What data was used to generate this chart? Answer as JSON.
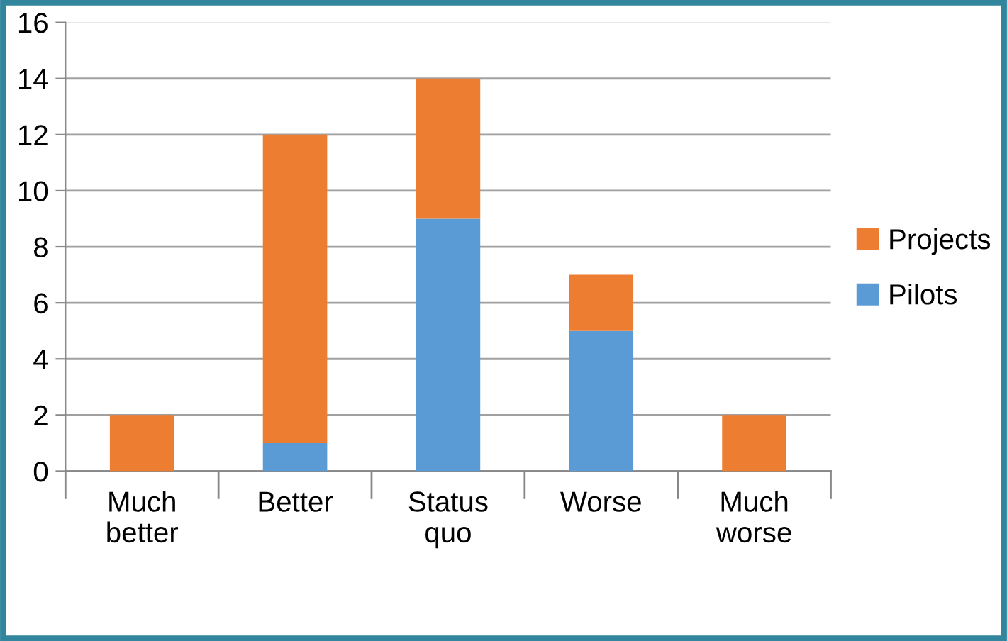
{
  "chart_data": {
    "type": "bar",
    "stacked": true,
    "categories": [
      "Much\nbetter",
      "Better",
      "Status\nquo",
      "Worse",
      "Much\nworse"
    ],
    "series": [
      {
        "name": "Pilots",
        "color": "#5b9bd5",
        "values": [
          0,
          1,
          9,
          5,
          0
        ]
      },
      {
        "name": "Projects",
        "color": "#ed7d31",
        "values": [
          2,
          11,
          5,
          2,
          2
        ]
      }
    ],
    "ylim": [
      0,
      16
    ],
    "yticks": [
      0,
      2,
      4,
      6,
      8,
      10,
      12,
      14,
      16
    ],
    "grid": "y",
    "legend": "right"
  }
}
